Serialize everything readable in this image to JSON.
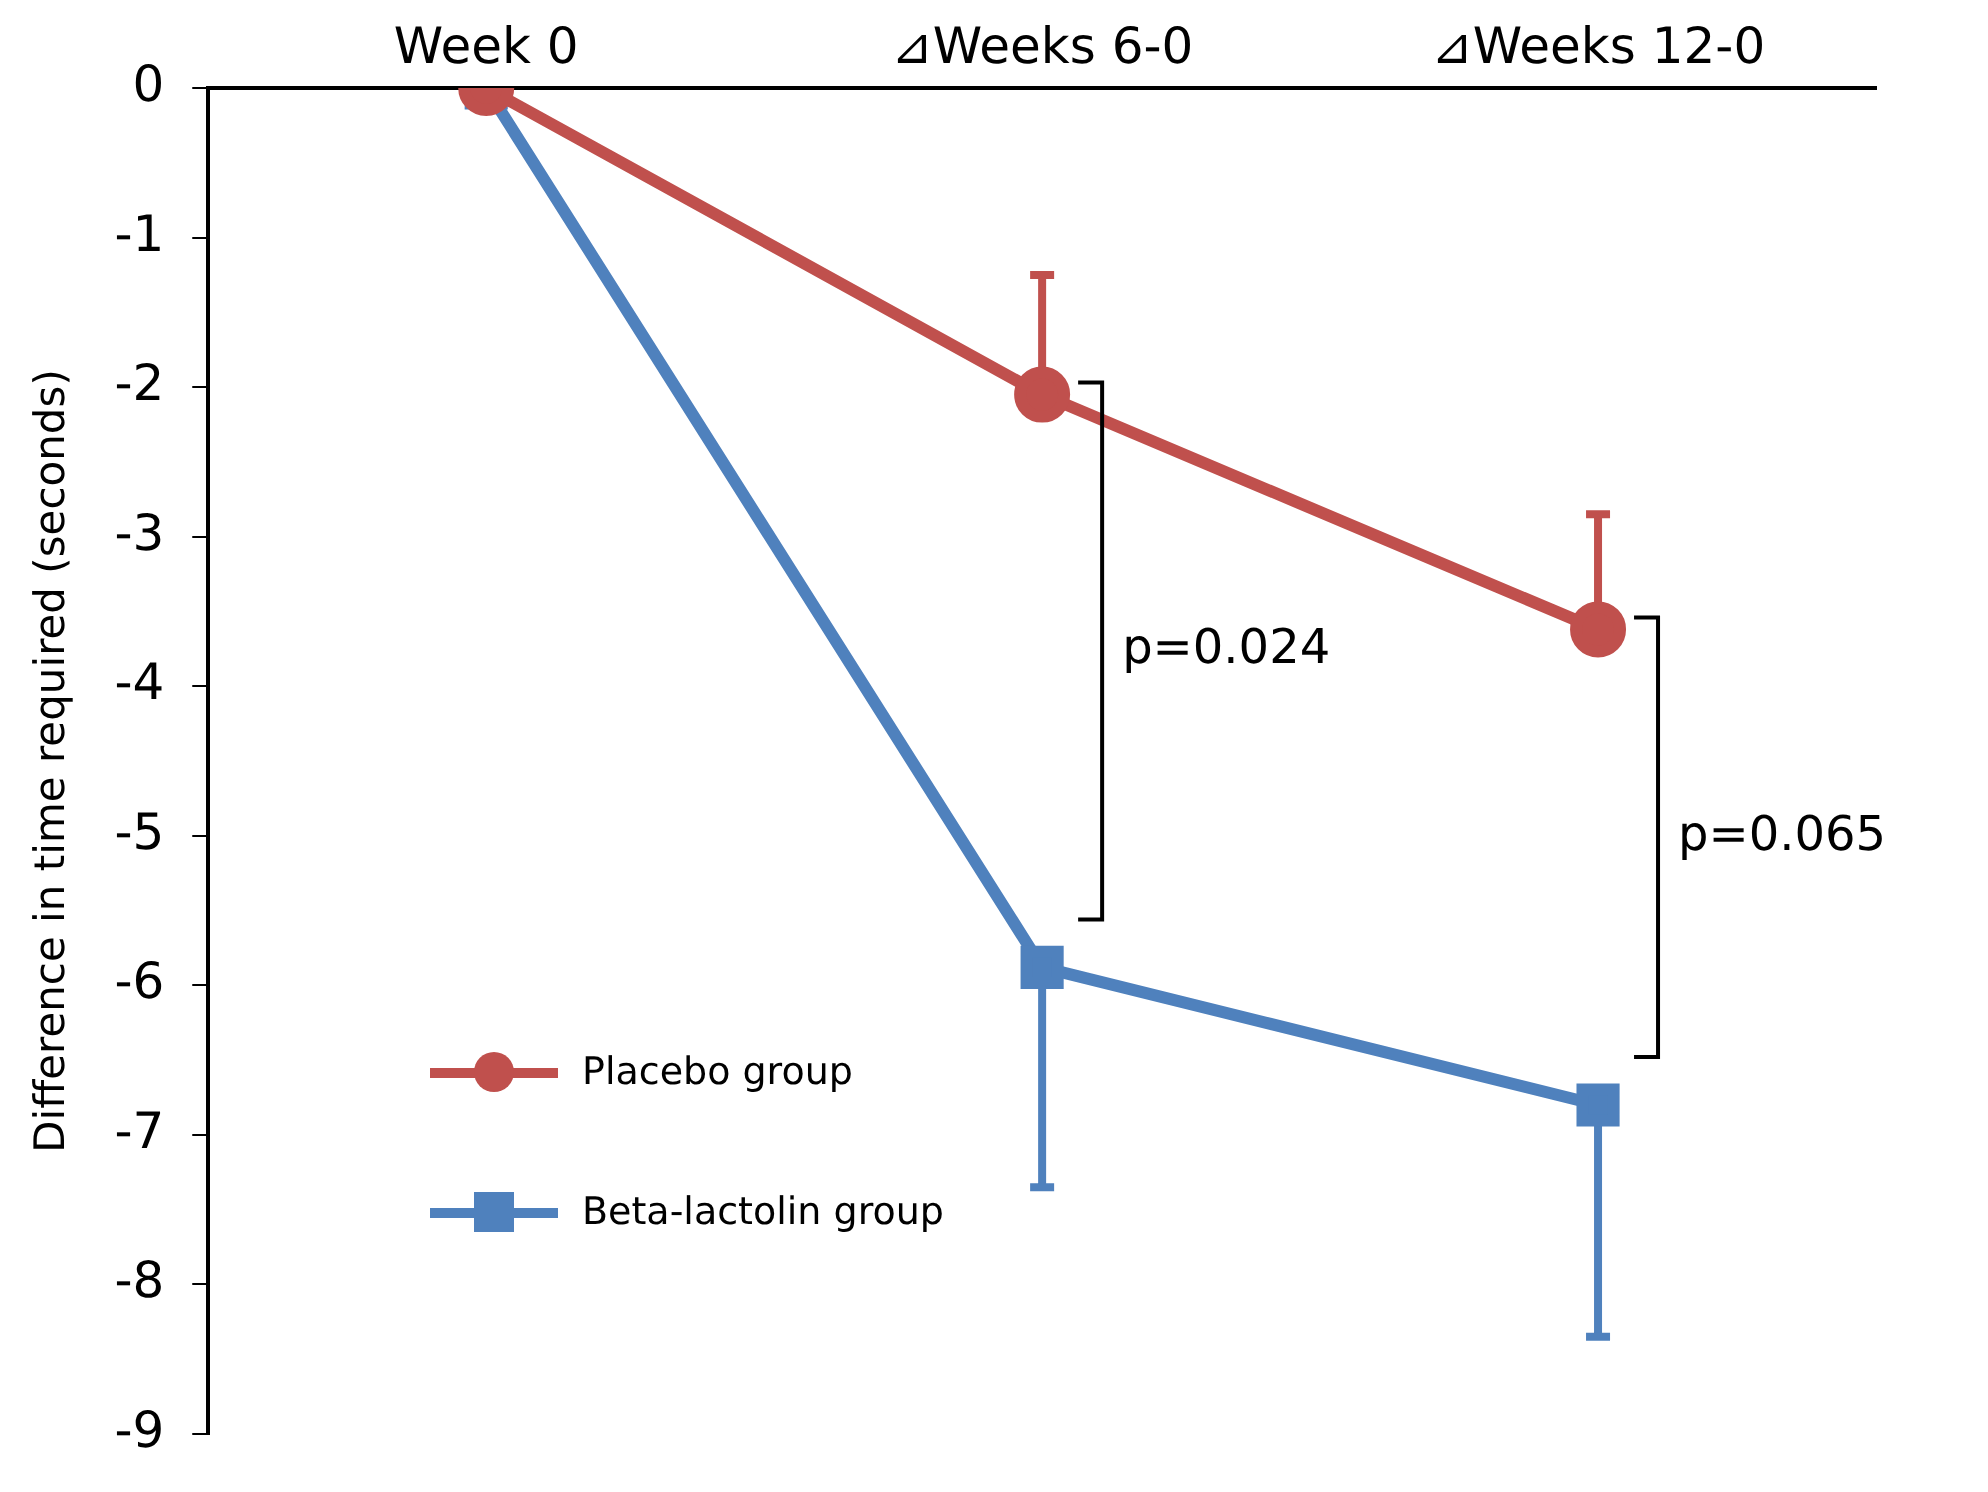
{
  "chart_data": {
    "type": "line",
    "ylabel": "Difference in time required (seconds)",
    "categories": [
      "Week 0",
      "⊿Weeks 6-0",
      "⊿Weeks 12-0"
    ],
    "series": [
      {
        "name": "Placebo group",
        "color": "#c0504d",
        "marker": "circle",
        "values": [
          0,
          -2.05,
          -3.62
        ],
        "errors": [
          null,
          [
            -2.05,
            -1.25
          ],
          [
            -3.62,
            -2.85
          ]
        ]
      },
      {
        "name": "Beta-lactolin group",
        "color": "#4f81bd",
        "marker": "square",
        "values": [
          0,
          -5.88,
          -6.8
        ],
        "errors": [
          null,
          [
            -7.35,
            -5.88
          ],
          [
            -8.35,
            -6.8
          ]
        ]
      }
    ],
    "ylim": [
      -9,
      0
    ],
    "yticks": [
      -9,
      -8,
      -7,
      -6,
      -5,
      -4,
      -3,
      -2,
      -1,
      0
    ],
    "grid": false,
    "legend": "bottom left",
    "annotations": [
      "p=0.024",
      "p=0.065"
    ]
  }
}
